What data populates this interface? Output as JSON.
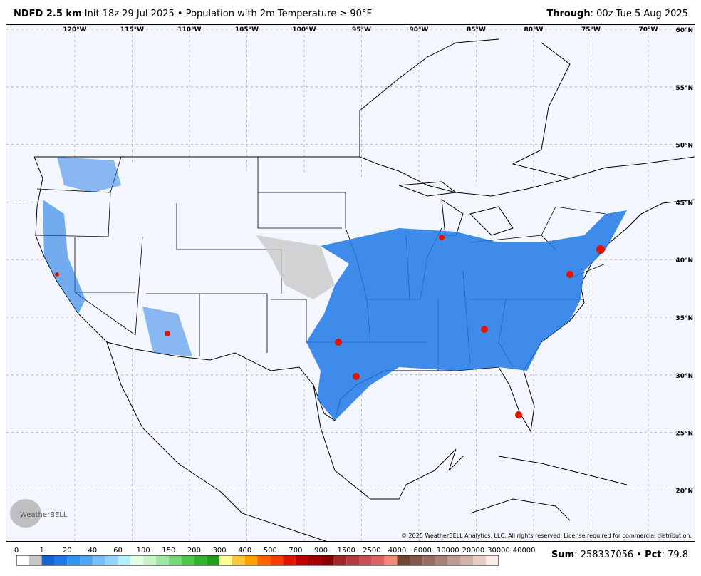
{
  "header": {
    "model": "NDFD 2.5 km",
    "description": "Init 18z 29 Jul 2025 • Population with 2m Temperature ≥ 90°F",
    "through_label": "Through",
    "through_value": "00z Tue 5 Aug 2025"
  },
  "map": {
    "lon_labels": [
      "120°W",
      "115°W",
      "110°W",
      "105°W",
      "100°W",
      "95°W",
      "90°W",
      "85°W",
      "80°W",
      "75°W",
      "70°W"
    ],
    "lat_labels": [
      "60°N",
      "55°N",
      "50°N",
      "45°N",
      "40°N",
      "35°N",
      "30°N",
      "25°N",
      "20°N"
    ],
    "logo": "WeatherBELL",
    "copyright": "© 2025 WeatherBELL Analytics, LLC. All rights reserved. License required for commercial distribution."
  },
  "colorbar": {
    "ticks": [
      0,
      1,
      20,
      40,
      60,
      100,
      150,
      200,
      300,
      400,
      500,
      700,
      900,
      1500,
      2500,
      4000,
      6000,
      10000,
      20000,
      30000,
      40000
    ],
    "colors": [
      "#ffffff",
      "#c8c8c8",
      "#1464d2",
      "#1e78e6",
      "#3296f0",
      "#50a5f5",
      "#78bef8",
      "#96d2fa",
      "#b4f0fa",
      "#e1ffe1",
      "#c8f5c8",
      "#a0e6a0",
      "#78d778",
      "#50c850",
      "#32b432",
      "#1ea01e",
      "#ffff96",
      "#ffc83c",
      "#ffa000",
      "#ff6400",
      "#fa3c00",
      "#e11400",
      "#c00000",
      "#a50000",
      "#870000",
      "#a02828",
      "#b43c3c",
      "#c85050",
      "#dc6464",
      "#f08c78",
      "#6e4632",
      "#825a4b",
      "#966e64",
      "#aa8278",
      "#be9b91",
      "#d2b4aa",
      "#e6ccc3",
      "#faebe6"
    ]
  },
  "footer": {
    "sum_label": "Sum",
    "sum": 258337056,
    "pct_label": "Pct",
    "pct": 79.8
  }
}
